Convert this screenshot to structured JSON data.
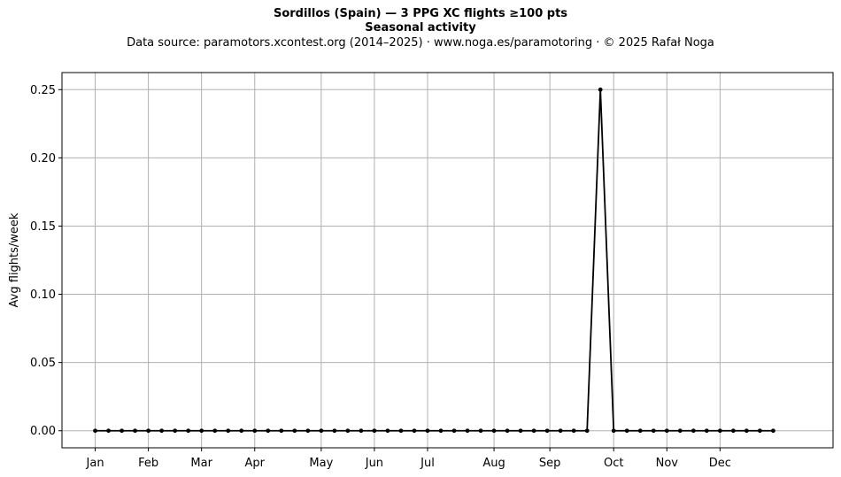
{
  "chart_data": {
    "type": "line",
    "title": "Sordillos (Spain)  —  3 PPG XC flights ≥100 pts",
    "subtitle": "Seasonal activity",
    "source": "Data source: paramotors.xcontest.org (2014–2025)  ·  www.noga.es/paramotoring  ·  © 2025 Rafał Noga",
    "xlabel": "",
    "ylabel": "Avg flights/week",
    "xlim": [
      -2.5,
      55.5
    ],
    "ylim": [
      -0.0125,
      0.2625
    ],
    "grid": true,
    "x_ticks": [
      {
        "label": "Jan",
        "week": 0
      },
      {
        "label": "Feb",
        "week": 4
      },
      {
        "label": "Mar",
        "week": 8
      },
      {
        "label": "Apr",
        "week": 12
      },
      {
        "label": "May",
        "week": 17
      },
      {
        "label": "Jun",
        "week": 21
      },
      {
        "label": "Jul",
        "week": 25
      },
      {
        "label": "Aug",
        "week": 30
      },
      {
        "label": "Sep",
        "week": 34.2
      },
      {
        "label": "Oct",
        "week": 39
      },
      {
        "label": "Nov",
        "week": 43
      },
      {
        "label": "Dec",
        "week": 47
      }
    ],
    "y_ticks": [
      0.0,
      0.05,
      0.1,
      0.15,
      0.2,
      0.25
    ],
    "y_tick_labels": [
      "0.00",
      "0.05",
      "0.10",
      "0.15",
      "0.20",
      "0.25"
    ],
    "series": [
      {
        "name": "",
        "color": "#000000",
        "x": [
          0,
          1,
          2,
          3,
          4,
          5,
          6,
          7,
          8,
          9,
          10,
          11,
          12,
          13,
          14,
          15,
          16,
          17,
          18,
          19,
          20,
          21,
          22,
          23,
          24,
          25,
          26,
          27,
          28,
          29,
          30,
          31,
          32,
          33,
          34,
          35,
          36,
          37,
          38,
          39,
          40,
          41,
          42,
          43,
          44,
          45,
          46,
          47,
          48,
          49,
          50,
          51
        ],
        "y": [
          0,
          0,
          0,
          0,
          0,
          0,
          0,
          0,
          0,
          0,
          0,
          0,
          0,
          0,
          0,
          0,
          0,
          0,
          0,
          0,
          0,
          0,
          0,
          0,
          0,
          0,
          0,
          0,
          0,
          0,
          0,
          0,
          0,
          0,
          0,
          0,
          0,
          0,
          0.25,
          0,
          0,
          0,
          0,
          0,
          0,
          0,
          0,
          0,
          0,
          0,
          0,
          0
        ]
      }
    ]
  }
}
